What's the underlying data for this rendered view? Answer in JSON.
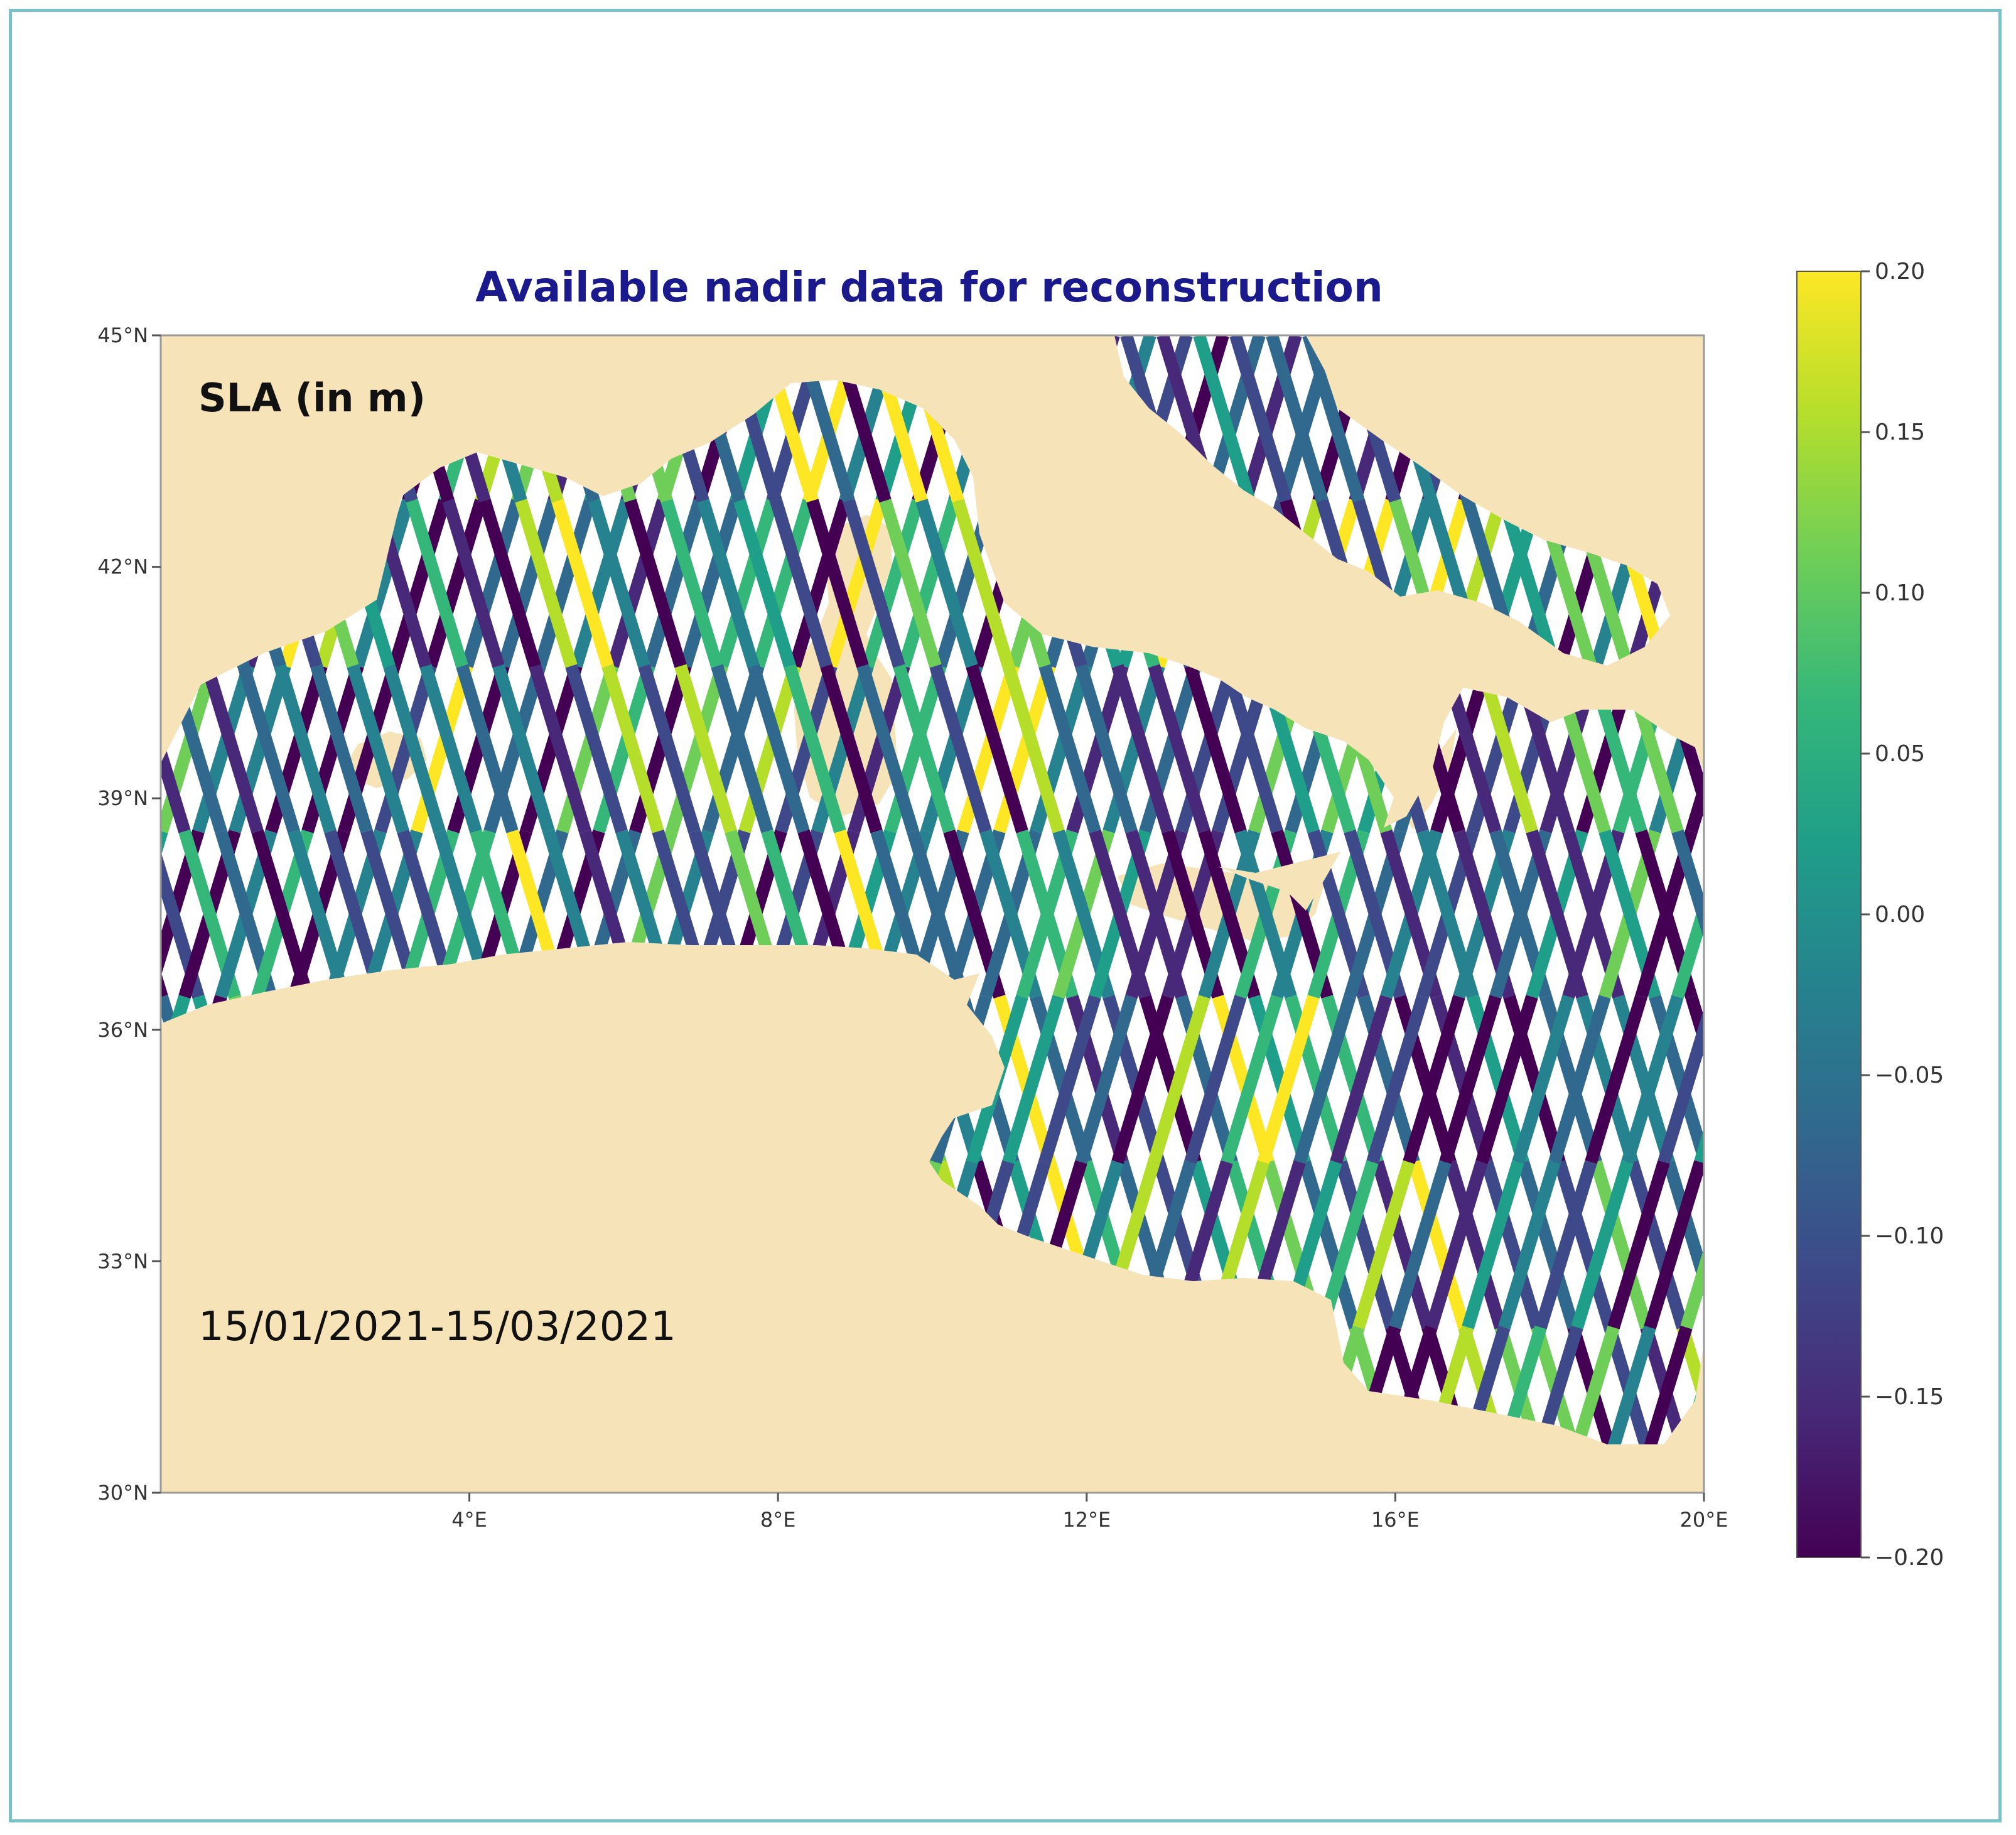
{
  "title": "Available nadir data for reconstruction",
  "variable_label": "SLA (in m)",
  "date_range": "15/01/2021-15/03/2021",
  "colors": {
    "land": "#f7e3b8",
    "ocean": "#ffffff",
    "title": "#1a1a8c",
    "frame": "#79c2c9",
    "colormap": [
      "#440154",
      "#482878",
      "#3e4989",
      "#31688e",
      "#26828e",
      "#1f9e89",
      "#35b779",
      "#6ece58",
      "#b5de2b",
      "#fde725"
    ]
  },
  "chart_data": {
    "type": "map",
    "projection": "plate-carree",
    "region": "Western and central Mediterranean Sea",
    "lon_range": [
      0,
      20
    ],
    "lat_range": [
      30,
      45
    ],
    "x_ticks": [
      {
        "value": 4,
        "label": "4°E"
      },
      {
        "value": 8,
        "label": "8°E"
      },
      {
        "value": 12,
        "label": "12°E"
      },
      {
        "value": 16,
        "label": "16°E"
      },
      {
        "value": 20,
        "label": "20°E"
      }
    ],
    "y_ticks": [
      {
        "value": 30,
        "label": "30°N"
      },
      {
        "value": 33,
        "label": "33°N"
      },
      {
        "value": 36,
        "label": "36°N"
      },
      {
        "value": 39,
        "label": "39°N"
      },
      {
        "value": 42,
        "label": "42°N"
      },
      {
        "value": 45,
        "label": "45°N"
      }
    ],
    "colorbar": {
      "colormap": "viridis",
      "range": [
        -0.2,
        0.2
      ],
      "ticks": [
        {
          "value": 0.2,
          "label": "0.20"
        },
        {
          "value": 0.15,
          "label": "0.15"
        },
        {
          "value": 0.1,
          "label": "0.10"
        },
        {
          "value": 0.05,
          "label": "0.05"
        },
        {
          "value": 0.0,
          "label": "0.00"
        },
        {
          "value": -0.05,
          "label": "−0.05"
        },
        {
          "value": -0.1,
          "label": "−0.10"
        },
        {
          "value": -0.15,
          "label": "−0.15"
        },
        {
          "value": -0.2,
          "label": "−0.20"
        }
      ]
    },
    "tracks": "satellite nadir altimeter ground tracks colored by SLA value"
  }
}
